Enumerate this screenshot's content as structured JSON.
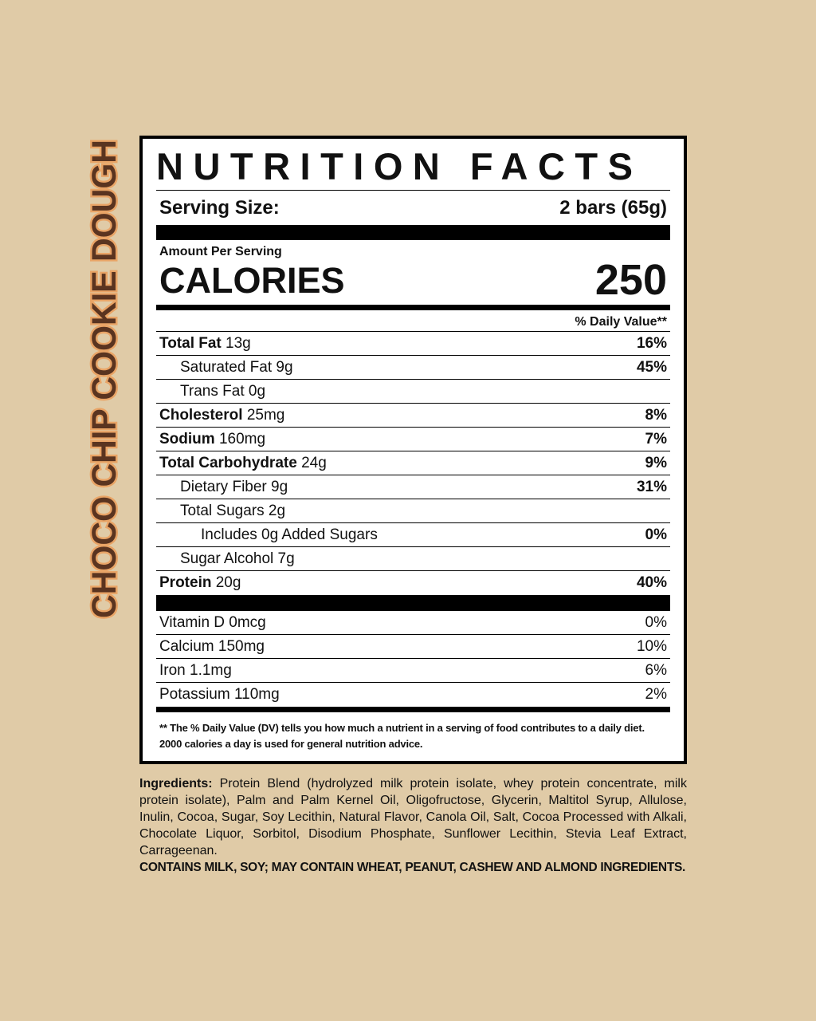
{
  "side_label": "CHOCO CHIP COOKIE DOUGH",
  "header": {
    "title": "NUTRITION FACTS"
  },
  "serving": {
    "label": "Serving Size:",
    "value": "2 bars (65g)"
  },
  "calories": {
    "amount_label": "Amount Per Serving",
    "label": "CALORIES",
    "value": 250
  },
  "dv_header": "% Daily Value**",
  "nutrients": [
    {
      "name": "Total Fat",
      "amount": "13g",
      "dv": "16%",
      "sub": [
        {
          "text": "Saturated Fat 9g",
          "dv": "45%"
        },
        {
          "text": "Trans Fat 0g"
        }
      ]
    },
    {
      "name": "Cholesterol",
      "amount": "25mg",
      "dv": "8%"
    },
    {
      "name": "Sodium",
      "amount": "160mg",
      "dv": "7%"
    },
    {
      "name": "Total Carbohydrate",
      "amount": "24g",
      "dv": "9%",
      "sub": [
        {
          "text": "Dietary Fiber 9g",
          "dv": "31%"
        },
        {
          "text": "Total Sugars 2g",
          "sub": [
            {
              "text": "Includes 0g Added Sugars",
              "dv": "0%"
            }
          ]
        },
        {
          "text": "Sugar Alcohol 7g"
        }
      ]
    },
    {
      "name": "Protein",
      "amount": "20g",
      "dv": "40%"
    }
  ],
  "vitamins": [
    {
      "text": "Vitamin D 0mcg",
      "dv": "0%"
    },
    {
      "text": "Calcium 150mg",
      "dv": "10%"
    },
    {
      "text": "Iron 1.1mg",
      "dv": "6%"
    },
    {
      "text": "Potassium 110mg",
      "dv": "2%"
    }
  ],
  "footnote": [
    "** The % Daily Value (DV) tells you how much a nutrient in a serving of food contributes to a daily diet.",
    "2000 calories a day is used for general nutrition advice."
  ],
  "ingredients": {
    "label": "Ingredients:",
    "text": "Protein Blend (hydrolyzed milk protein isolate, whey protein concentrate, milk protein isolate), Palm and Palm Kernel Oil, Oligofructose, Glycerin, Maltitol Syrup, Allulose, Inulin, Cocoa, Sugar, Soy Lecithin, Natural Flavor, Canola Oil, Salt, Cocoa Processed with Alkali, Chocolate Liquor, Sorbitol, Disodium Phosphate, Sunflower Lecithin, Stevia Leaf Extract, Carrageenan.",
    "allergens": "CONTAINS MILK, SOY; MAY CONTAIN WHEAT, PEANUT, CASHEW AND ALMOND INGREDIENTS."
  }
}
